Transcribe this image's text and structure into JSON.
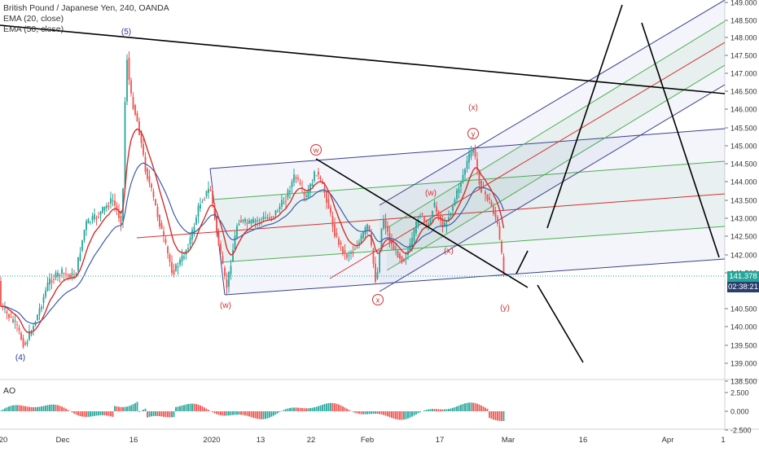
{
  "legend": {
    "symbol": "British Pound / Japanese Yen, 240, OANDA",
    "ema20": "EMA (20, close)",
    "ema50": "EMA (50, close)"
  },
  "indicator": {
    "label": "AO"
  },
  "price_axis": {
    "ticks": [
      "149.000",
      "148.500",
      "148.000",
      "147.500",
      "147.000",
      "146.500",
      "146.000",
      "145.500",
      "145.000",
      "144.500",
      "144.000",
      "143.500",
      "143.000",
      "142.500",
      "142.000",
      "141.500",
      "140.500",
      "140.000",
      "139.500",
      "139.000",
      "138.500"
    ],
    "current_price": "141.378",
    "countdown": "02:38:21",
    "price_badge_color": "#26a69a",
    "countdown_badge_color": "#2a3e6e"
  },
  "ao_axis": {
    "ticks": [
      "2.500",
      "0.000",
      "-2.500"
    ]
  },
  "time_axis": {
    "ticks": [
      "20",
      "Dec",
      "16",
      "2020",
      "13",
      "22",
      "Feb",
      "17",
      "Mar",
      "16",
      "Apr",
      "1"
    ]
  },
  "wave_labels": {
    "four": "(4)",
    "five": "(5)",
    "w_paren": "(w)",
    "w_circle": "w",
    "x_circle": "x",
    "w_small": "(w)",
    "x_small": "(x)",
    "x_top": "(x)",
    "y_circle": "y",
    "y_small": "(y)"
  },
  "colors": {
    "up": "#26a69a",
    "down": "#ef5350",
    "ema20": "#d32f2f",
    "ema50": "#3c5bab",
    "channel": "#3b3f8f",
    "pitch_green": "#4caf50",
    "pitch_red": "#d32f2f",
    "drawing": "#000000",
    "label_red": "#d32f2f",
    "label_blue": "#283593"
  }
}
